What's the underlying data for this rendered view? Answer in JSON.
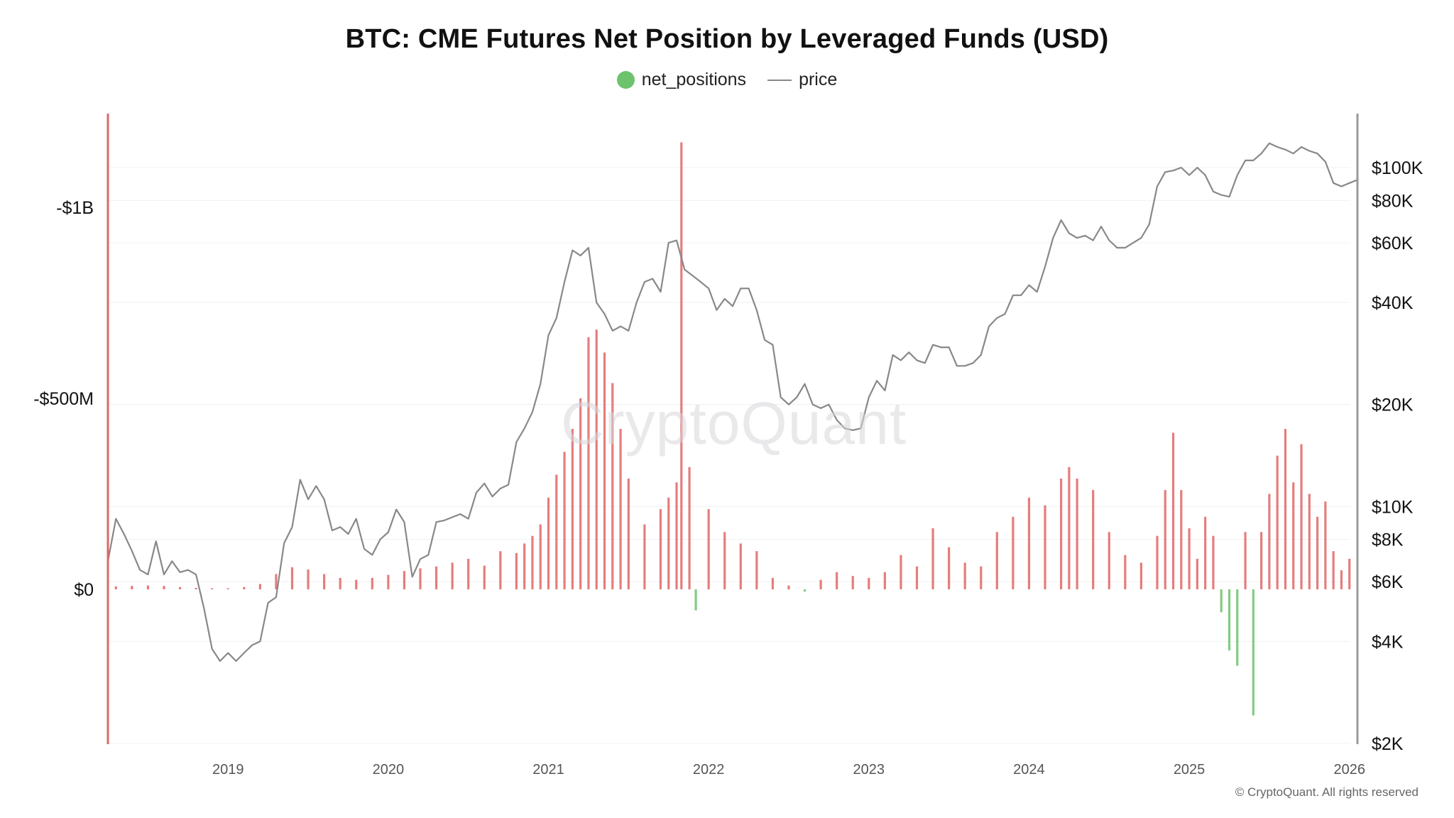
{
  "chart_data": {
    "type": "bar",
    "title": "BTC: CME Futures Net Position by Leveraged Funds (USD)",
    "legend": [
      {
        "name": "net_positions",
        "color": "#6cc36c",
        "marker": "dot"
      },
      {
        "name": "price",
        "color": "#888888",
        "marker": "line"
      }
    ],
    "legend_placement": "top-center",
    "y_left": {
      "ticks": [
        {
          "value": -1000000000,
          "label": "-$1B"
        },
        {
          "value": -500000000,
          "label": "-$500M"
        },
        {
          "value": 0,
          "label": "$0"
        }
      ],
      "range": [
        -1000000000,
        410000000
      ],
      "inverted": true
    },
    "y_right": {
      "scale": "log",
      "ticks": [
        {
          "value": 100000,
          "label": "$100K"
        },
        {
          "value": 80000,
          "label": "$80K"
        },
        {
          "value": 60000,
          "label": "$60K"
        },
        {
          "value": 40000,
          "label": "$40K"
        },
        {
          "value": 20000,
          "label": "$20K"
        },
        {
          "value": 10000,
          "label": "$10K"
        },
        {
          "value": 8000,
          "label": "$8K"
        },
        {
          "value": 6000,
          "label": "$6K"
        },
        {
          "value": 4000,
          "label": "$4K"
        },
        {
          "value": 2000,
          "label": "$2K"
        }
      ],
      "range": [
        2000,
        170000
      ]
    },
    "x_ticks": [
      "2019",
      "2020",
      "2021",
      "2022",
      "2023",
      "2024",
      "2025",
      "2026"
    ],
    "x_range": [
      2018.25,
      2026.05
    ],
    "grid": "horizontal",
    "series": [
      {
        "name": "net_positions",
        "type": "bar",
        "positive_color": "#e06666",
        "negative_color": "#6cc36c",
        "x": [
          2018.3,
          2018.4,
          2018.5,
          2018.6,
          2018.7,
          2018.8,
          2018.9,
          2019.0,
          2019.1,
          2019.2,
          2019.3,
          2019.4,
          2019.5,
          2019.6,
          2019.7,
          2019.8,
          2019.9,
          2020.0,
          2020.1,
          2020.2,
          2020.3,
          2020.4,
          2020.5,
          2020.6,
          2020.7,
          2020.8,
          2020.85,
          2020.9,
          2020.95,
          2021.0,
          2021.05,
          2021.1,
          2021.15,
          2021.2,
          2021.25,
          2021.3,
          2021.35,
          2021.4,
          2021.45,
          2021.5,
          2021.6,
          2021.7,
          2021.75,
          2021.8,
          2021.83,
          2021.88,
          2021.92,
          2022.0,
          2022.1,
          2022.2,
          2022.3,
          2022.4,
          2022.5,
          2022.6,
          2022.7,
          2022.8,
          2022.9,
          2023.0,
          2023.1,
          2023.2,
          2023.3,
          2023.4,
          2023.5,
          2023.6,
          2023.7,
          2023.8,
          2023.9,
          2024.0,
          2024.1,
          2024.2,
          2024.25,
          2024.3,
          2024.4,
          2024.5,
          2024.6,
          2024.7,
          2024.8,
          2024.85,
          2024.9,
          2024.95,
          2025.0,
          2025.05,
          2025.1,
          2025.15,
          2025.2,
          2025.25,
          2025.3,
          2025.35,
          2025.4,
          2025.45,
          2025.5,
          2025.55,
          2025.6,
          2025.65,
          2025.7,
          2025.75,
          2025.8,
          2025.85,
          2025.9,
          2025.95,
          2026.0
        ],
        "values": [
          -8000000,
          -9000000,
          -10000000,
          -9000000,
          -6000000,
          -4000000,
          -3000000,
          -3000000,
          -6000000,
          -14000000,
          -40000000,
          -58000000,
          -52000000,
          -40000000,
          -30000000,
          -25000000,
          -30000000,
          -38000000,
          -48000000,
          -55000000,
          -60000000,
          -70000000,
          -80000000,
          -62000000,
          -100000000,
          -95000000,
          -120000000,
          -140000000,
          -170000000,
          -240000000,
          -300000000,
          -360000000,
          -420000000,
          -500000000,
          -660000000,
          -680000000,
          -620000000,
          -540000000,
          -420000000,
          -290000000,
          -170000000,
          -210000000,
          -240000000,
          -280000000,
          -1170000000,
          -320000000,
          55000000,
          -210000000,
          -150000000,
          -120000000,
          -100000000,
          -30000000,
          -10000000,
          6000000,
          -25000000,
          -45000000,
          -35000000,
          -30000000,
          -45000000,
          -90000000,
          -60000000,
          -160000000,
          -110000000,
          -70000000,
          -60000000,
          -150000000,
          -190000000,
          -240000000,
          -220000000,
          -290000000,
          -320000000,
          -290000000,
          -260000000,
          -150000000,
          -90000000,
          -70000000,
          -140000000,
          -260000000,
          -410000000,
          -260000000,
          -160000000,
          -80000000,
          -190000000,
          -140000000,
          60000000,
          160000000,
          200000000,
          -150000000,
          330000000,
          -150000000,
          -250000000,
          -350000000,
          -420000000,
          -280000000,
          -380000000,
          -250000000,
          -190000000,
          -230000000,
          -100000000,
          -50000000,
          -80000000
        ]
      },
      {
        "name": "price",
        "type": "line",
        "color": "#888888",
        "x": [
          2018.25,
          2018.3,
          2018.35,
          2018.4,
          2018.45,
          2018.5,
          2018.55,
          2018.6,
          2018.65,
          2018.7,
          2018.75,
          2018.8,
          2018.85,
          2018.9,
          2018.95,
          2019.0,
          2019.05,
          2019.1,
          2019.15,
          2019.2,
          2019.25,
          2019.3,
          2019.35,
          2019.4,
          2019.45,
          2019.5,
          2019.55,
          2019.6,
          2019.65,
          2019.7,
          2019.75,
          2019.8,
          2019.85,
          2019.9,
          2019.95,
          2020.0,
          2020.05,
          2020.1,
          2020.15,
          2020.2,
          2020.25,
          2020.3,
          2020.35,
          2020.4,
          2020.45,
          2020.5,
          2020.55,
          2020.6,
          2020.65,
          2020.7,
          2020.75,
          2020.8,
          2020.85,
          2020.9,
          2020.95,
          2021.0,
          2021.05,
          2021.1,
          2021.15,
          2021.2,
          2021.25,
          2021.3,
          2021.35,
          2021.4,
          2021.45,
          2021.5,
          2021.55,
          2021.6,
          2021.65,
          2021.7,
          2021.75,
          2021.8,
          2021.85,
          2021.9,
          2021.95,
          2022.0,
          2022.05,
          2022.1,
          2022.15,
          2022.2,
          2022.25,
          2022.3,
          2022.35,
          2022.4,
          2022.45,
          2022.5,
          2022.55,
          2022.6,
          2022.65,
          2022.7,
          2022.75,
          2022.8,
          2022.85,
          2022.9,
          2022.95,
          2023.0,
          2023.05,
          2023.1,
          2023.15,
          2023.2,
          2023.25,
          2023.3,
          2023.35,
          2023.4,
          2023.45,
          2023.5,
          2023.55,
          2023.6,
          2023.65,
          2023.7,
          2023.75,
          2023.8,
          2023.85,
          2023.9,
          2023.95,
          2024.0,
          2024.05,
          2024.1,
          2024.15,
          2024.2,
          2024.25,
          2024.3,
          2024.35,
          2024.4,
          2024.45,
          2024.5,
          2024.55,
          2024.6,
          2024.65,
          2024.7,
          2024.75,
          2024.8,
          2024.85,
          2024.9,
          2024.95,
          2025.0,
          2025.05,
          2025.1,
          2025.15,
          2025.2,
          2025.25,
          2025.3,
          2025.35,
          2025.4,
          2025.45,
          2025.5,
          2025.55,
          2025.6,
          2025.65,
          2025.7,
          2025.75,
          2025.8,
          2025.85,
          2025.9,
          2025.95,
          2026.0,
          2026.05
        ],
        "values": [
          6900,
          9200,
          8300,
          7400,
          6500,
          6300,
          7900,
          6300,
          6900,
          6400,
          6500,
          6300,
          5000,
          3800,
          3500,
          3700,
          3500,
          3700,
          3900,
          4000,
          5200,
          5400,
          7800,
          8700,
          12000,
          10500,
          11500,
          10500,
          8500,
          8700,
          8300,
          9200,
          7500,
          7200,
          8000,
          8400,
          9800,
          9000,
          6200,
          7000,
          7200,
          9000,
          9100,
          9300,
          9500,
          9200,
          11000,
          11700,
          10700,
          11300,
          11600,
          15500,
          17000,
          19000,
          23000,
          32000,
          36000,
          46000,
          57000,
          55000,
          58000,
          40000,
          37000,
          33000,
          34000,
          33000,
          40000,
          46000,
          47000,
          43000,
          60000,
          61000,
          50000,
          48000,
          46000,
          44000,
          38000,
          41000,
          39000,
          44000,
          44000,
          38000,
          31000,
          30000,
          21000,
          20000,
          21000,
          23000,
          20000,
          19500,
          20000,
          18000,
          17000,
          16800,
          17000,
          21000,
          23500,
          22000,
          28000,
          27000,
          28500,
          27000,
          26500,
          30000,
          29500,
          29500,
          26000,
          26000,
          26500,
          28000,
          34000,
          36000,
          37000,
          42000,
          42000,
          45000,
          43000,
          51000,
          62000,
          70000,
          64000,
          62000,
          63000,
          61000,
          67000,
          61000,
          58000,
          58000,
          60000,
          62000,
          68000,
          88000,
          97000,
          98000,
          100000,
          95000,
          100000,
          95000,
          85000,
          83000,
          82000,
          95000,
          105000,
          105000,
          110000,
          118000,
          115000,
          113000,
          110000,
          115000,
          112000,
          110000,
          104000,
          90000,
          88000,
          90000,
          92000
        ]
      }
    ]
  },
  "watermark": "CryptoQuant",
  "copyright": "© CryptoQuant. All rights reserved"
}
